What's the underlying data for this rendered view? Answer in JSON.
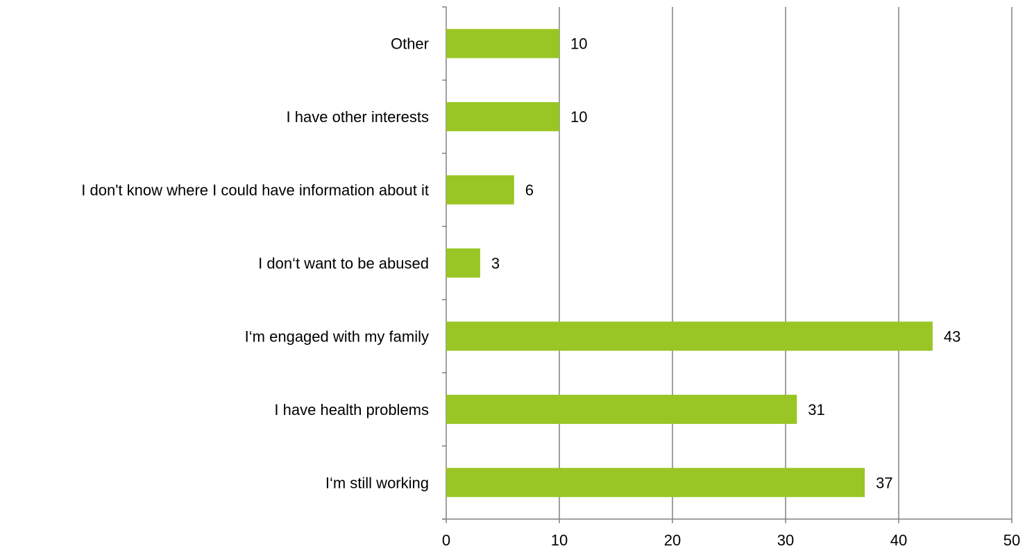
{
  "chart_data": {
    "type": "bar",
    "orientation": "horizontal",
    "title": "",
    "xlabel": "",
    "ylabel": "",
    "categories": [
      "Other",
      "I have other interests",
      "I don't know where I could have information about it",
      "I don‘t want to be abused",
      "I‘m engaged with my family",
      "I have health problems",
      "I‘m still working"
    ],
    "values": [
      10,
      10,
      6,
      3,
      43,
      31,
      37
    ],
    "xlim": [
      0,
      50
    ],
    "ticks": [
      0,
      10,
      20,
      30,
      40,
      50
    ],
    "tick_labels": [
      "0",
      "10",
      "20",
      "30",
      "40",
      "50"
    ],
    "data_labels": [
      "10",
      "10",
      "6",
      "3",
      "43",
      "31",
      "37"
    ],
    "grid": "vertical",
    "legend": "none",
    "colors": {
      "bar": "#99c624",
      "grid": "#808080",
      "axis": "#808080",
      "text": "#000000"
    }
  }
}
